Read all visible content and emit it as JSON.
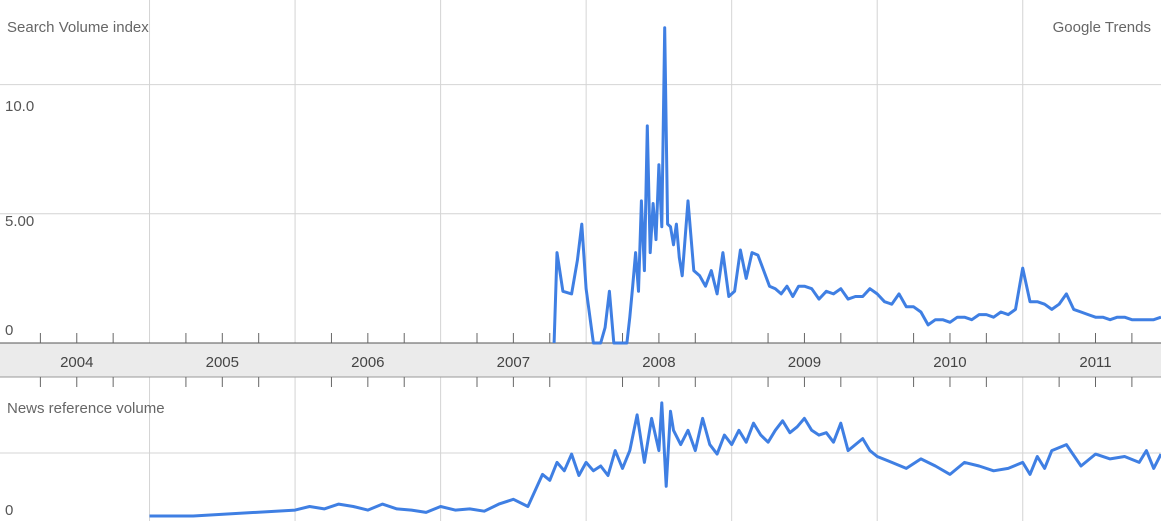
{
  "header": {
    "left": "Search Volume index",
    "right": "Google Trends"
  },
  "lower_header": "News reference volume",
  "colors": {
    "line": "#3f7fe3",
    "grid": "#d9d9d9",
    "axis_band": "#ebebeb",
    "tick": "#666666"
  },
  "chart_data": [
    {
      "type": "line",
      "title": "Search Volume index",
      "ylabel": "Search Volume index",
      "y_ticks": [
        "0",
        "5.00",
        "10.0"
      ],
      "y_tick_values": [
        0,
        5,
        10
      ],
      "ylim": [
        0,
        12.5
      ],
      "x_categories": [
        "2004",
        "2005",
        "2006",
        "2007",
        "2008",
        "2009",
        "2010",
        "2011"
      ],
      "xlim": [
        2004,
        2011.95
      ],
      "grid": true,
      "series": [
        {
          "x": [
            2007.78,
            2007.8,
            2007.84,
            2007.9,
            2007.94,
            2007.97,
            2008.0,
            2008.05,
            2008.08,
            2008.1,
            2008.13,
            2008.16,
            2008.19,
            2008.22,
            2008.26,
            2008.28,
            2008.3,
            2008.32,
            2008.34,
            2008.36,
            2008.38,
            2008.4,
            2008.42,
            2008.44,
            2008.46,
            2008.48,
            2008.5,
            2008.52,
            2008.54,
            2008.56,
            2008.58,
            2008.6,
            2008.62,
            2008.64,
            2008.66,
            2008.7,
            2008.74,
            2008.78,
            2008.82,
            2008.86,
            2008.9,
            2008.94,
            2008.98,
            2009.02,
            2009.06,
            2009.1,
            2009.14,
            2009.18,
            2009.22,
            2009.26,
            2009.3,
            2009.34,
            2009.38,
            2009.42,
            2009.46,
            2009.5,
            2009.55,
            2009.6,
            2009.65,
            2009.7,
            2009.75,
            2009.8,
            2009.85,
            2009.9,
            2009.95,
            2010.0,
            2010.05,
            2010.1,
            2010.15,
            2010.2,
            2010.25,
            2010.3,
            2010.35,
            2010.4,
            2010.45,
            2010.5,
            2010.55,
            2010.6,
            2010.65,
            2010.7,
            2010.75,
            2010.8,
            2010.85,
            2010.9,
            2010.95,
            2011.0,
            2011.05,
            2011.1,
            2011.15,
            2011.2,
            2011.25,
            2011.3,
            2011.35,
            2011.4,
            2011.45,
            2011.5,
            2011.55,
            2011.6,
            2011.65,
            2011.7,
            2011.75,
            2011.8,
            2011.85,
            2011.9,
            2011.95
          ],
          "y": [
            0,
            3.5,
            2,
            1.9,
            3.2,
            4.6,
            2.1,
            0,
            0,
            0,
            0.6,
            2,
            0,
            0,
            0,
            0,
            1,
            2.2,
            3.5,
            2,
            5.5,
            2.8,
            8.4,
            3.5,
            5.4,
            4,
            6.9,
            4.5,
            12.2,
            4.6,
            4.5,
            3.8,
            4.6,
            3.3,
            2.6,
            5.5,
            2.8,
            2.6,
            2.2,
            2.8,
            1.9,
            3.5,
            1.8,
            2.0,
            3.6,
            2.5,
            3.5,
            3.4,
            2.8,
            2.2,
            2.1,
            1.9,
            2.2,
            1.8,
            2.2,
            2.2,
            2.1,
            1.7,
            2.0,
            1.9,
            2.1,
            1.7,
            1.8,
            1.8,
            2.1,
            1.9,
            1.6,
            1.5,
            1.9,
            1.4,
            1.4,
            1.2,
            0.7,
            0.9,
            0.9,
            0.8,
            1.0,
            1.0,
            0.9,
            1.1,
            1.1,
            1.0,
            1.2,
            1.1,
            1.3,
            2.9,
            1.6,
            1.6,
            1.5,
            1.3,
            1.5,
            1.9,
            1.3,
            1.2,
            1.1,
            1.0,
            1.0,
            0.9,
            1.0,
            1.0,
            0.9,
            0.9,
            0.9,
            0.9,
            1.0
          ]
        }
      ]
    },
    {
      "type": "line",
      "title": "News reference volume",
      "ylabel": "News reference volume",
      "y_ticks": [
        "0"
      ],
      "y_tick_values": [
        0
      ],
      "ylim": [
        0,
        1.0
      ],
      "xlim": [
        2004,
        2011.95
      ],
      "grid": true,
      "series": [
        {
          "x": [
            2005.0,
            2005.3,
            2006.0,
            2006.1,
            2006.2,
            2006.3,
            2006.4,
            2006.5,
            2006.6,
            2006.7,
            2006.8,
            2006.9,
            2007.0,
            2007.1,
            2007.2,
            2007.3,
            2007.4,
            2007.5,
            2007.6,
            2007.7,
            2007.75,
            2007.8,
            2007.85,
            2007.9,
            2007.95,
            2008.0,
            2008.05,
            2008.1,
            2008.15,
            2008.2,
            2008.25,
            2008.3,
            2008.35,
            2008.4,
            2008.45,
            2008.5,
            2008.52,
            2008.55,
            2008.58,
            2008.6,
            2008.65,
            2008.7,
            2008.75,
            2008.8,
            2008.85,
            2008.9,
            2008.95,
            2009.0,
            2009.05,
            2009.1,
            2009.15,
            2009.2,
            2009.25,
            2009.3,
            2009.35,
            2009.4,
            2009.45,
            2009.5,
            2009.55,
            2009.6,
            2009.65,
            2009.7,
            2009.75,
            2009.8,
            2009.85,
            2009.9,
            2009.95,
            2010.0,
            2010.1,
            2010.2,
            2010.3,
            2010.4,
            2010.5,
            2010.6,
            2010.7,
            2010.8,
            2010.9,
            2011.0,
            2011.05,
            2011.1,
            2011.15,
            2011.2,
            2011.3,
            2011.4,
            2011.5,
            2011.6,
            2011.7,
            2011.8,
            2011.85,
            2011.9,
            2011.95
          ],
          "y": [
            0,
            0,
            0.05,
            0.08,
            0.06,
            0.1,
            0.08,
            0.05,
            0.1,
            0.06,
            0.05,
            0.03,
            0.08,
            0.05,
            0.06,
            0.04,
            0.1,
            0.14,
            0.08,
            0.35,
            0.3,
            0.45,
            0.38,
            0.52,
            0.34,
            0.45,
            0.38,
            0.42,
            0.34,
            0.55,
            0.4,
            0.55,
            0.85,
            0.45,
            0.82,
            0.55,
            0.95,
            0.25,
            0.88,
            0.72,
            0.6,
            0.72,
            0.55,
            0.82,
            0.6,
            0.52,
            0.68,
            0.6,
            0.72,
            0.62,
            0.78,
            0.68,
            0.62,
            0.72,
            0.8,
            0.7,
            0.75,
            0.82,
            0.72,
            0.68,
            0.7,
            0.62,
            0.78,
            0.55,
            0.6,
            0.65,
            0.55,
            0.5,
            0.45,
            0.4,
            0.48,
            0.42,
            0.35,
            0.45,
            0.42,
            0.38,
            0.4,
            0.45,
            0.35,
            0.5,
            0.4,
            0.55,
            0.6,
            0.42,
            0.52,
            0.48,
            0.5,
            0.45,
            0.55,
            0.4,
            0.52
          ]
        }
      ]
    }
  ]
}
